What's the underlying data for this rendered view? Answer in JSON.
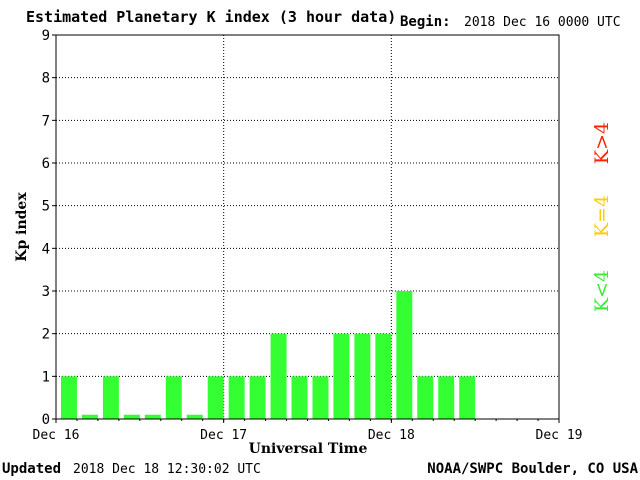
{
  "header": {
    "title": "Estimated Planetary K index (3 hour data)",
    "begin_label": "Begin:",
    "begin_value": "2018 Dec 16 0000 UTC"
  },
  "footer": {
    "updated_label": "Updated",
    "updated_value": "2018 Dec 18 12:30:02 UTC",
    "source": "NOAA/SWPC Boulder, CO USA"
  },
  "colors": {
    "bar": "#33ff33",
    "legend_low": "#33ee33",
    "legend_mid": "#ffcc00",
    "legend_high": "#ff2200"
  },
  "chart_data": {
    "type": "bar",
    "xlabel": "Universal Time",
    "ylabel": "Kp index",
    "ylim": [
      0,
      9
    ],
    "yticks": [
      "0",
      "1",
      "2",
      "3",
      "4",
      "5",
      "6",
      "7",
      "8",
      "9"
    ],
    "xticks": [
      "Dec 16",
      "Dec 17",
      "Dec 18",
      "Dec 19"
    ],
    "grid": true,
    "values": [
      1,
      0.1,
      1,
      0.1,
      0.1,
      1,
      0.1,
      1,
      1,
      1,
      2,
      1,
      1,
      2,
      2,
      2,
      3,
      1,
      1,
      1
    ],
    "legend": [
      {
        "label": "K<4",
        "color": "#33ee33"
      },
      {
        "label": "K=4",
        "color": "#ffcc00"
      },
      {
        "label": "K>4",
        "color": "#ff2200"
      }
    ]
  }
}
